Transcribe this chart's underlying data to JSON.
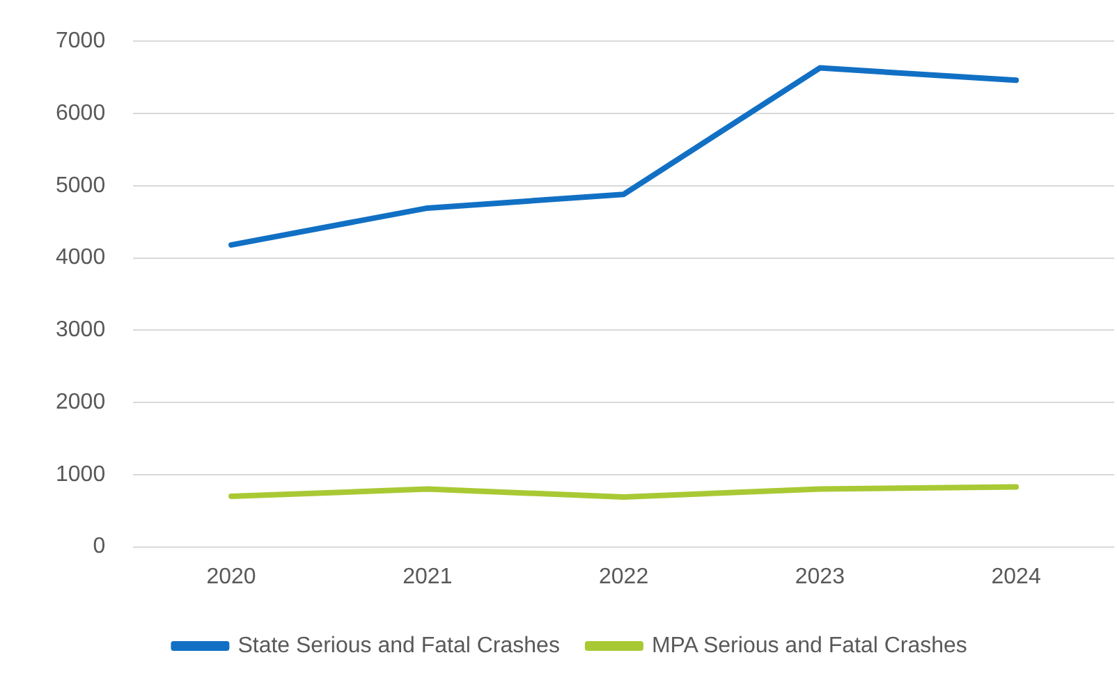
{
  "chart_data": {
    "type": "line",
    "categories": [
      "2020",
      "2021",
      "2022",
      "2023",
      "2024"
    ],
    "series": [
      {
        "name": "State Serious and Fatal Crashes",
        "color": "#1170c4",
        "values": [
          4180,
          4690,
          4880,
          6630,
          6460
        ]
      },
      {
        "name": "MPA Serious and Fatal Crashes",
        "color": "#a9c934",
        "values": [
          700,
          800,
          690,
          800,
          830
        ]
      }
    ],
    "ylim": [
      0,
      7000
    ],
    "yticks": [
      0,
      1000,
      2000,
      3000,
      4000,
      5000,
      6000,
      7000
    ],
    "grid": "y",
    "legend": "bottom",
    "marker": "none",
    "line_style": "solid"
  }
}
